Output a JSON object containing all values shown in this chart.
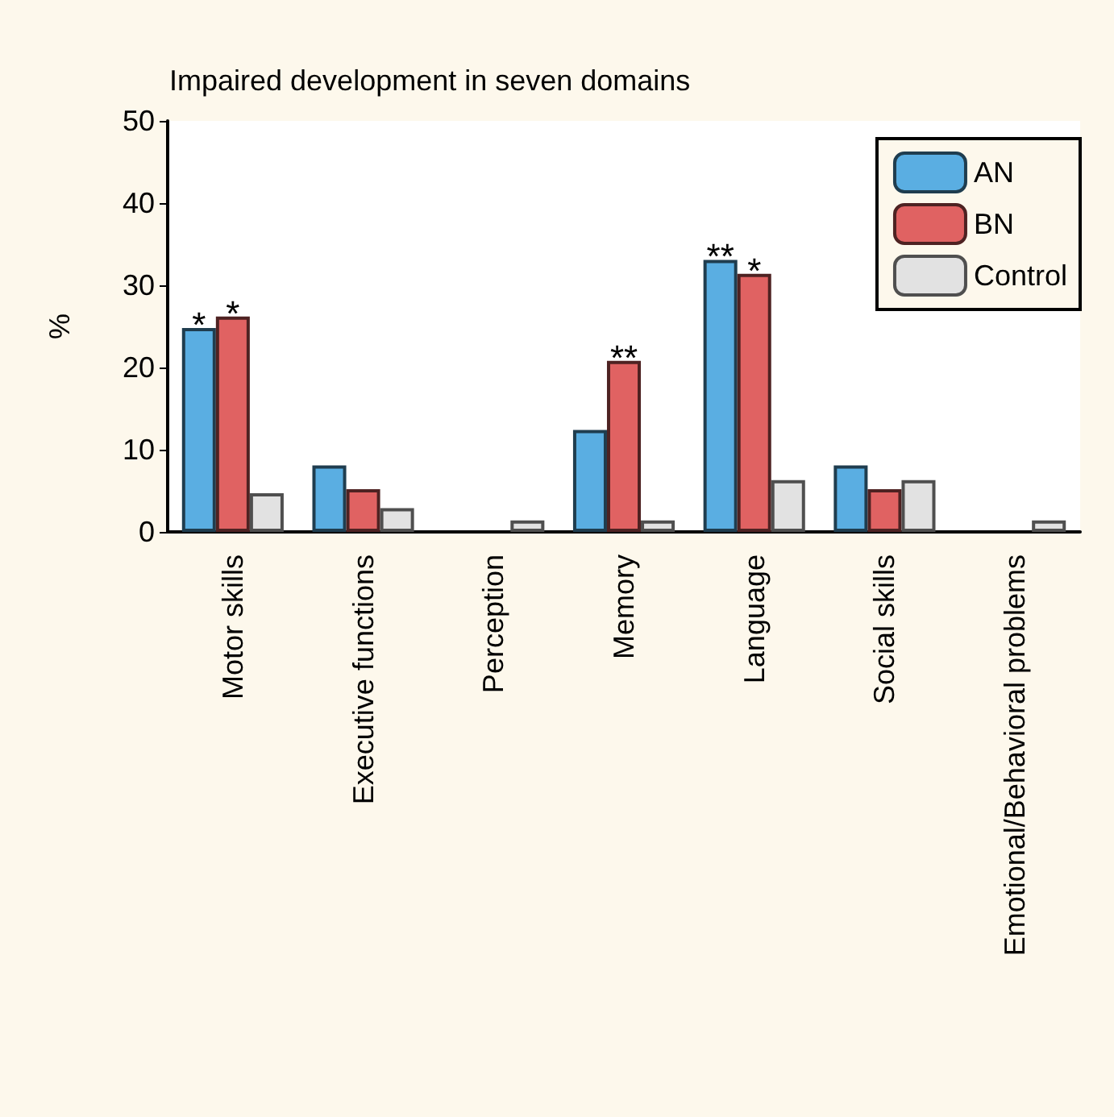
{
  "chart_data": {
    "type": "bar",
    "title": "Impaired development in seven domains",
    "ylabel": "%",
    "categories": [
      "Motor skills",
      "Executive functions",
      "Perception",
      "Memory",
      "Language",
      "Social skills",
      "Emotional/Behavioral problems"
    ],
    "series": [
      {
        "name": "AN",
        "color": "#5aaee2",
        "values": [
          24.8,
          8.1,
          0,
          12.4,
          33.1,
          8.1,
          0
        ],
        "value_labels": [
          "*",
          null,
          null,
          null,
          "**",
          null,
          null
        ]
      },
      {
        "name": "BN",
        "color": "#e06262",
        "values": [
          26.2,
          5.2,
          0,
          20.8,
          31.4,
          5.2,
          0
        ],
        "value_labels": [
          "*",
          null,
          null,
          "**",
          "*",
          null,
          null
        ]
      },
      {
        "name": "Control",
        "color": "#e2e2e2",
        "values": [
          4.7,
          2.9,
          1.4,
          1.4,
          6.3,
          6.3,
          1.4
        ]
      }
    ],
    "ylim": [
      0,
      50
    ],
    "yticks": [
      0,
      10,
      20,
      30,
      40,
      50
    ],
    "grid": false,
    "legend": "top right"
  }
}
